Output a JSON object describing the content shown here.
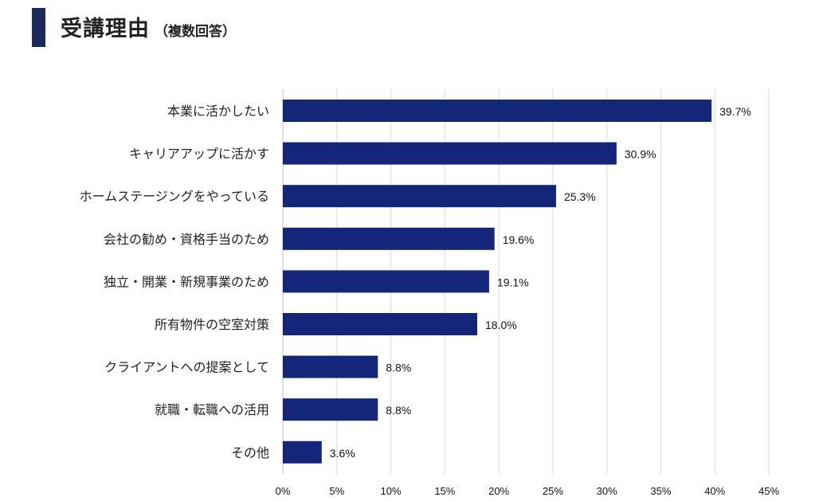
{
  "header": {
    "title": "受講理由",
    "subtitle": "（複数回答）",
    "accent_color": "#1b2a5e"
  },
  "chart_data": {
    "type": "bar",
    "orientation": "horizontal",
    "categories": [
      "本業に活かしたい",
      "キャリアアップに活かす",
      "ホームステージングをやっている",
      "会社の勧め・資格手当のため",
      "独立・開業・新規事業のため",
      "所有物件の空室対策",
      "クライアントへの提案として",
      "就職・転職への活用",
      "その他"
    ],
    "values": [
      39.7,
      30.9,
      25.3,
      19.6,
      19.1,
      18.0,
      8.8,
      8.8,
      3.6
    ],
    "value_labels": [
      "39.7%",
      "30.9%",
      "25.3%",
      "19.6%",
      "19.1%",
      "18.0%",
      "8.8%",
      "8.8%",
      "3.6%"
    ],
    "xlim": [
      0,
      45
    ],
    "x_ticks": [
      0,
      5,
      10,
      15,
      20,
      25,
      30,
      35,
      40,
      45
    ],
    "x_tick_labels": [
      "0%",
      "5%",
      "10%",
      "15%",
      "20%",
      "25%",
      "30%",
      "35%",
      "40%",
      "45%"
    ],
    "grid": "vertical",
    "bar_color": "#13267a",
    "legend": "none"
  }
}
